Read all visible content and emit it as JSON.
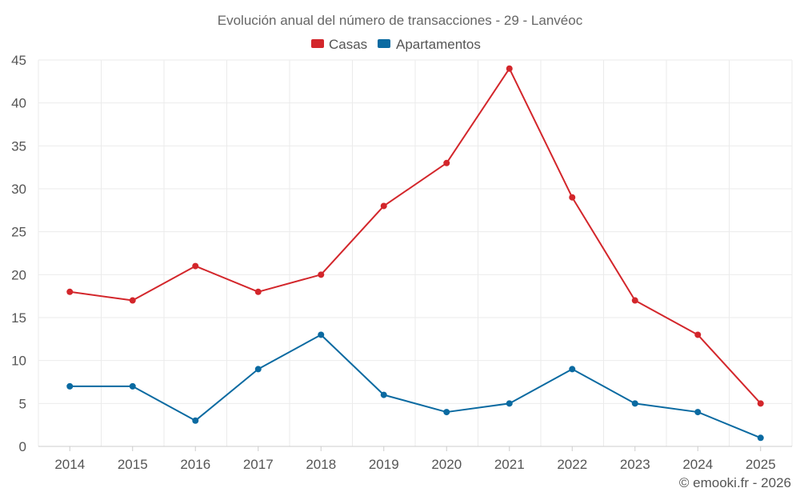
{
  "chart_data": {
    "type": "line",
    "title": "Evolución anual del número de transacciones - 29 - Lanvéoc",
    "xlabel": "",
    "ylabel": "",
    "categories": [
      "2014",
      "2015",
      "2016",
      "2017",
      "2018",
      "2019",
      "2020",
      "2021",
      "2022",
      "2023",
      "2024",
      "2025"
    ],
    "ylim": [
      0,
      45
    ],
    "yticks": [
      0,
      5,
      10,
      15,
      20,
      25,
      30,
      35,
      40,
      45
    ],
    "grid": true,
    "legend_position": "top-center",
    "series": [
      {
        "name": "Casas",
        "color": "#d3262b",
        "values": [
          18,
          17,
          21,
          18,
          20,
          28,
          33,
          44,
          29,
          17,
          13,
          5
        ]
      },
      {
        "name": "Apartamentos",
        "color": "#0a6aa1",
        "values": [
          7,
          7,
          3,
          9,
          13,
          6,
          4,
          5,
          9,
          5,
          4,
          1
        ]
      }
    ],
    "credit": "© emooki.fr - 2026"
  }
}
